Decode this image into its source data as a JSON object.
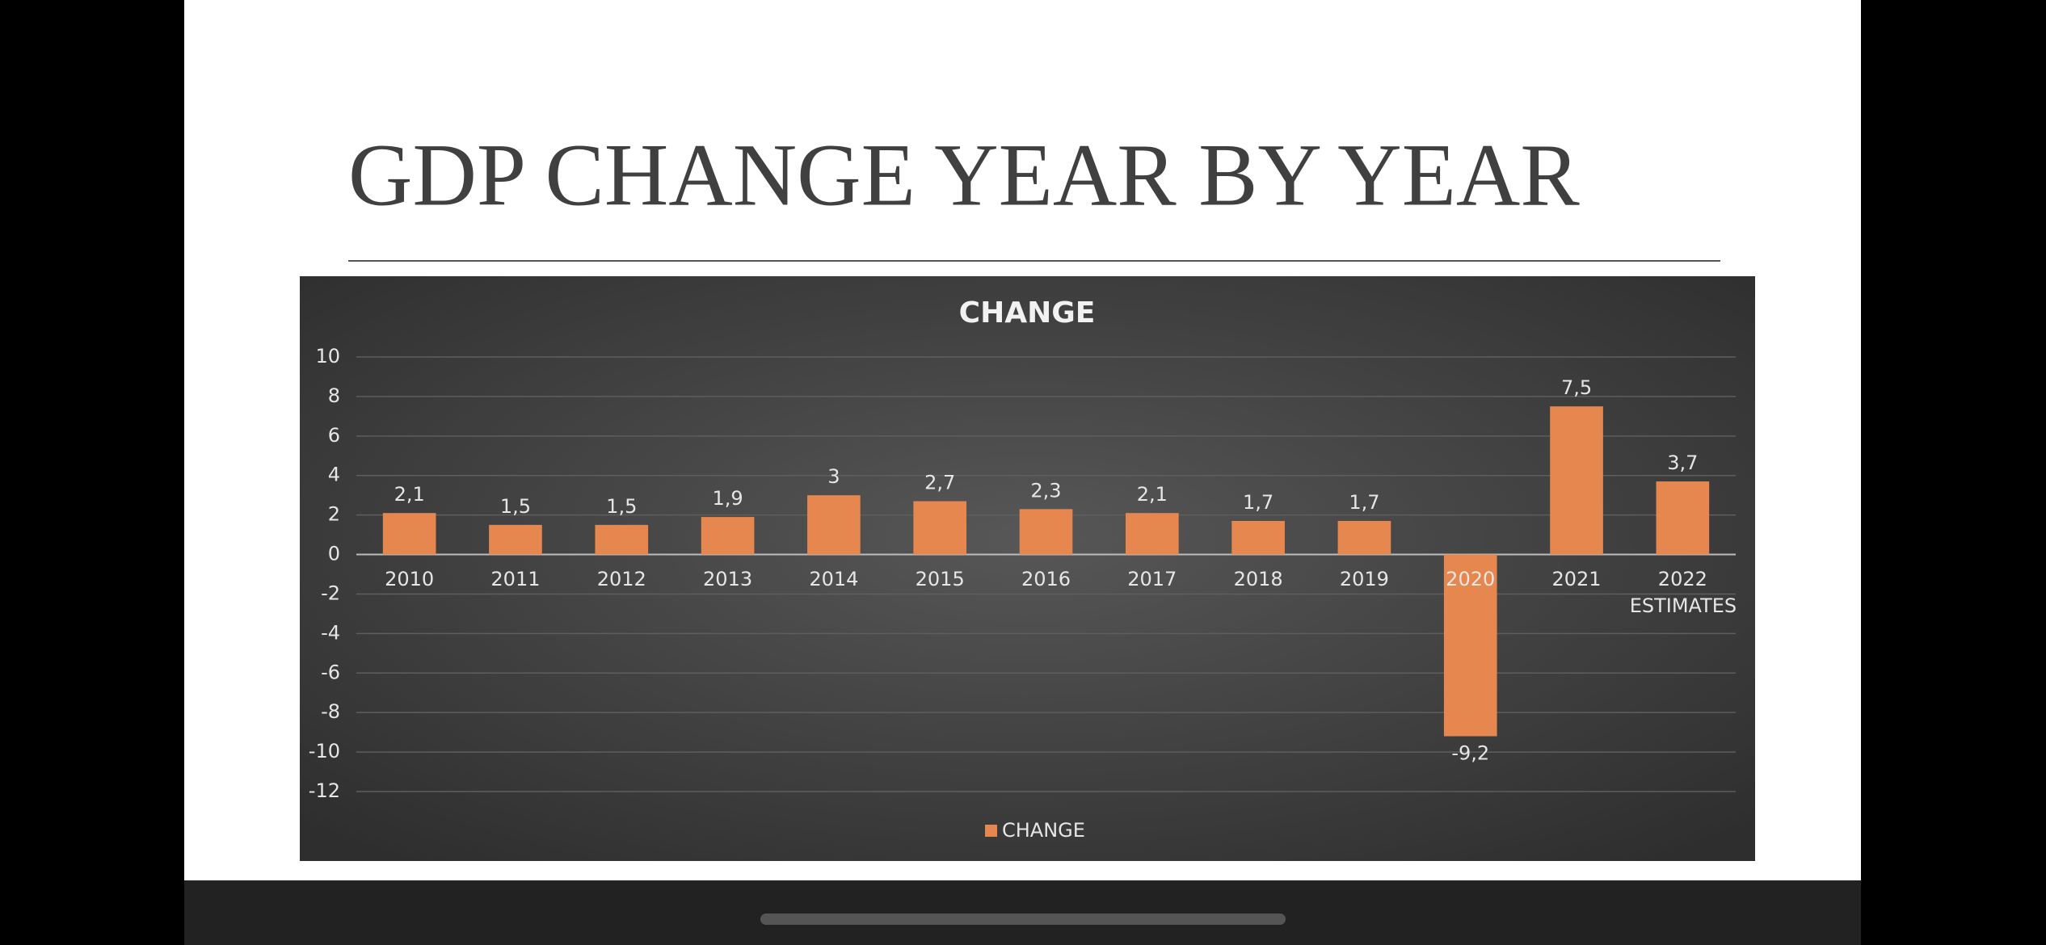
{
  "title": "GDP CHANGE YEAR BY YEAR",
  "chart_data": {
    "type": "bar",
    "title": "CHANGE",
    "categories": [
      "2010",
      "2011",
      "2012",
      "2013",
      "2014",
      "2015",
      "2016",
      "2017",
      "2018",
      "2019",
      "2020",
      "2021",
      "2022 ESTIMATES"
    ],
    "series": [
      {
        "name": "CHANGE",
        "color": "#e5874f",
        "values": [
          2.1,
          1.5,
          1.5,
          1.9,
          3,
          2.7,
          2.3,
          2.1,
          1.7,
          1.7,
          -9.2,
          7.5,
          3.7
        ],
        "value_labels": [
          "2,1",
          "1,5",
          "1,5",
          "1,9",
          "3",
          "2,7",
          "2,3",
          "2,1",
          "1,7",
          "1,7",
          "-9,2",
          "7,5",
          "3,7"
        ]
      }
    ],
    "ylim": [
      -12,
      10
    ],
    "yticks": [
      -12,
      -10,
      -8,
      -6,
      -4,
      -2,
      0,
      2,
      4,
      6,
      8,
      10
    ],
    "grid": true,
    "legend": "bottom"
  }
}
